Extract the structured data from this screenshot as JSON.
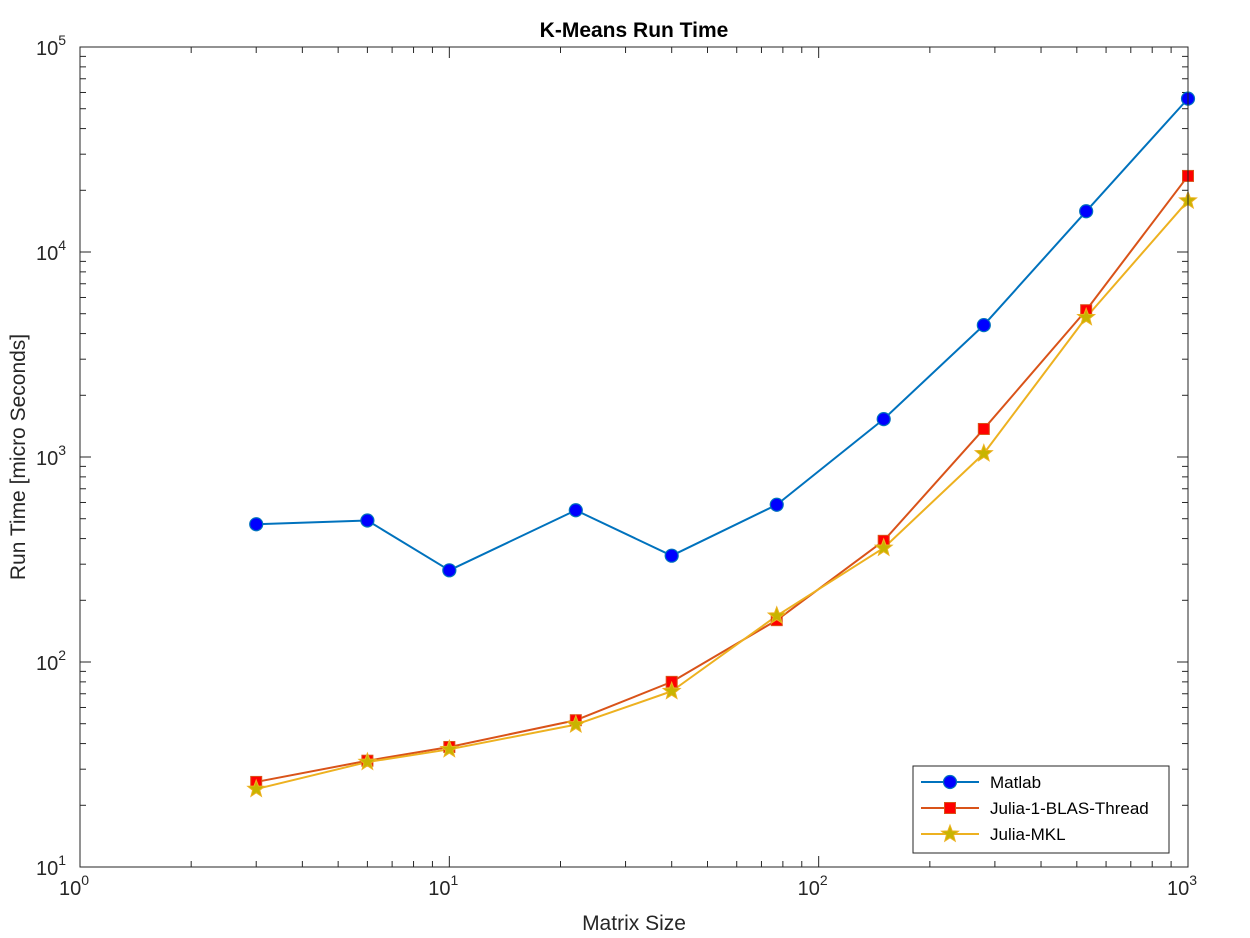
{
  "chart_data": {
    "type": "line",
    "title": "K-Means Run Time",
    "xlabel": "Matrix Size",
    "ylabel": "Run Time  [micro Seconds]",
    "xscale": "log",
    "yscale": "log",
    "xlim": [
      1,
      1000
    ],
    "ylim": [
      10,
      100000
    ],
    "x_ticks": [
      {
        "base": "10",
        "exp": "0",
        "value": 1
      },
      {
        "base": "10",
        "exp": "1",
        "value": 10
      },
      {
        "base": "10",
        "exp": "2",
        "value": 100
      },
      {
        "base": "10",
        "exp": "3",
        "value": 1000
      }
    ],
    "y_ticks": [
      {
        "base": "10",
        "exp": "1",
        "value": 10
      },
      {
        "base": "10",
        "exp": "2",
        "value": 100
      },
      {
        "base": "10",
        "exp": "3",
        "value": 1000
      },
      {
        "base": "10",
        "exp": "4",
        "value": 10000
      },
      {
        "base": "10",
        "exp": "5",
        "value": 100000
      }
    ],
    "grid": false,
    "legend_position": "bottom-right",
    "x": [
      3,
      6,
      10,
      22,
      40,
      77,
      150,
      280,
      530,
      1000
    ],
    "series": [
      {
        "name": "Matlab",
        "color": "#0072BD",
        "marker": "circle",
        "marker_color": "#0000FF",
        "values": [
          470,
          490,
          280,
          550,
          330,
          585,
          1530,
          4400,
          15800,
          56000
        ]
      },
      {
        "name": "Julia-1-BLAS-Thread",
        "color": "#D95319",
        "marker": "square",
        "marker_color": "#FF0000",
        "values": [
          26,
          33,
          38.5,
          52,
          80,
          160,
          390,
          1370,
          5200,
          23500
        ]
      },
      {
        "name": "Julia-MKL",
        "color": "#EDB120",
        "marker": "star",
        "marker_color": "#C8B400",
        "values": [
          24,
          32.5,
          37.5,
          49.5,
          72,
          168,
          360,
          1040,
          4800,
          17800
        ]
      }
    ]
  }
}
